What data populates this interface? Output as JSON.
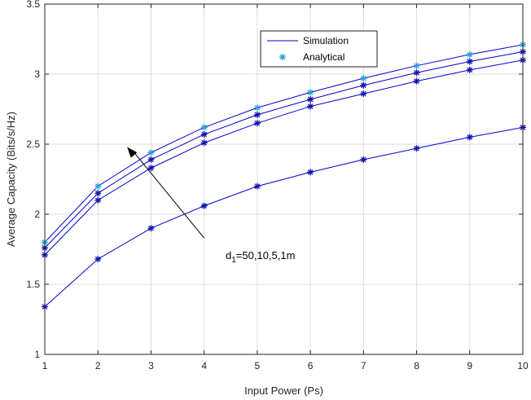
{
  "chart_data": {
    "type": "line",
    "xlabel": "Input Power (Ps)",
    "ylabel": "Average Capacity (Bits/s/Hz)",
    "xlim": [
      1,
      10
    ],
    "ylim": [
      1,
      3.5
    ],
    "xticks": [
      1,
      2,
      3,
      4,
      5,
      6,
      7,
      8,
      9,
      10
    ],
    "yticks": [
      1,
      1.5,
      2,
      2.5,
      3,
      3.5
    ],
    "grid": true,
    "legend": {
      "placement": "top-right",
      "entries": [
        {
          "label": "Simulation",
          "kind": "line",
          "color": "#0000cc"
        },
        {
          "label": "Analytical",
          "kind": "star",
          "color": "#2aa0d6"
        }
      ]
    },
    "annotation": {
      "text_main": "d",
      "text_sub": "1",
      "text_rest": "=50,10,5,1m",
      "arrow_from": [
        4.0,
        1.83
      ],
      "arrow_to": [
        2.55,
        2.48
      ]
    },
    "x": [
      1,
      2,
      3,
      4,
      5,
      6,
      7,
      8,
      9,
      10
    ],
    "series": [
      {
        "simulation": [
          1.8,
          2.2,
          2.44,
          2.62,
          2.76,
          2.87,
          2.97,
          3.06,
          3.14,
          3.21
        ],
        "analytical": [
          1.8,
          2.2,
          2.44,
          2.62,
          2.76,
          2.87,
          2.97,
          3.06,
          3.14,
          3.21
        ]
      },
      {
        "simulation": [
          1.76,
          2.15,
          2.39,
          2.57,
          2.71,
          2.82,
          2.92,
          3.01,
          3.09,
          3.16
        ],
        "analytical": [
          1.76,
          2.15,
          2.39,
          2.57,
          2.71,
          2.82,
          2.92,
          3.01,
          3.09,
          3.16
        ]
      },
      {
        "simulation": [
          1.71,
          2.1,
          2.33,
          2.51,
          2.65,
          2.77,
          2.86,
          2.95,
          3.03,
          3.1
        ],
        "analytical": [
          1.71,
          2.1,
          2.33,
          2.51,
          2.65,
          2.77,
          2.86,
          2.95,
          3.03,
          3.1
        ]
      },
      {
        "simulation": [
          1.34,
          1.68,
          1.9,
          2.06,
          2.2,
          2.3,
          2.39,
          2.47,
          2.55,
          2.62
        ],
        "analytical": [
          1.34,
          1.68,
          1.9,
          2.06,
          2.2,
          2.3,
          2.39,
          2.47,
          2.55,
          2.62
        ]
      }
    ],
    "colors": {
      "line": "#0000cc",
      "marker_dark": "#1010b0",
      "marker_light": "#2aa0d6",
      "grid": "#dcdcdc",
      "axis": "#262626"
    }
  }
}
